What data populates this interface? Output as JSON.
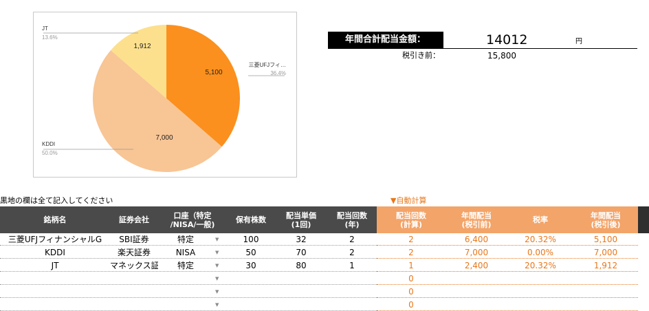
{
  "chart_data": {
    "type": "pie",
    "title": "",
    "slices": [
      {
        "name": "三菱UFJフィ…",
        "value": 5100,
        "percent": "36.4%",
        "color": "#fb901e"
      },
      {
        "name": "KDDI",
        "value": 7000,
        "percent": "50.0%",
        "color": "#f8c595"
      },
      {
        "name": "JT",
        "value": 1912,
        "percent": "13.6%",
        "color": "#fde08d"
      }
    ],
    "data_labels": [
      "5,100",
      "7,000",
      "1,912"
    ]
  },
  "summary": {
    "label": "年間合計配当金額：",
    "value": "14012",
    "unit": "円",
    "pretax_label": "税引き前：",
    "pretax_value": "15,800"
  },
  "notes": {
    "instruction": "黒地の欄は全て記入してください",
    "auto_calc": "▼自動計算"
  },
  "table": {
    "headers": {
      "name": "銘柄名",
      "broker": "証券会社",
      "account_1": "口座（特定",
      "account_2": "/NISA/一般)",
      "shares": "保有株数",
      "unit_div_1": "配当単価",
      "unit_div_2": "(1回)",
      "times_1": "配当回数",
      "times_2": "(年)",
      "calc_times_1": "配当回数",
      "calc_times_2": "(計算)",
      "annual_pre_1": "年間配当",
      "annual_pre_2": "(税引前)",
      "tax_rate": "税率",
      "annual_post_1": "年間配当",
      "annual_post_2": "(税引後)"
    },
    "rows": [
      {
        "name": "三菱UFJフィナンシャルG",
        "broker": "SBI証券",
        "account": "特定",
        "shares": "100",
        "unit_div": "32",
        "times": "2",
        "calc_times": "2",
        "annual_pre": "6,400",
        "tax_rate": "20.32%",
        "annual_post": "5,100"
      },
      {
        "name": "KDDI",
        "broker": "楽天証券",
        "account": "NISA",
        "shares": "50",
        "unit_div": "70",
        "times": "2",
        "calc_times": "2",
        "annual_pre": "7,000",
        "tax_rate": "0.00%",
        "annual_post": "7,000"
      },
      {
        "name": "JT",
        "broker": "マネックス証券",
        "account": "特定",
        "shares": "30",
        "unit_div": "80",
        "times": "1",
        "calc_times": "1",
        "annual_pre": "2,400",
        "tax_rate": "20.32%",
        "annual_post": "1,912"
      },
      {
        "name": "",
        "broker": "",
        "account": "",
        "shares": "",
        "unit_div": "",
        "times": "",
        "calc_times": "0",
        "annual_pre": "",
        "tax_rate": "",
        "annual_post": ""
      },
      {
        "name": "",
        "broker": "",
        "account": "",
        "shares": "",
        "unit_div": "",
        "times": "",
        "calc_times": "0",
        "annual_pre": "",
        "tax_rate": "",
        "annual_post": ""
      },
      {
        "name": "",
        "broker": "",
        "account": "",
        "shares": "",
        "unit_div": "",
        "times": "",
        "calc_times": "0",
        "annual_pre": "",
        "tax_rate": "",
        "annual_post": ""
      }
    ],
    "dropdown_icon": "dropdown-arrow-icon"
  }
}
